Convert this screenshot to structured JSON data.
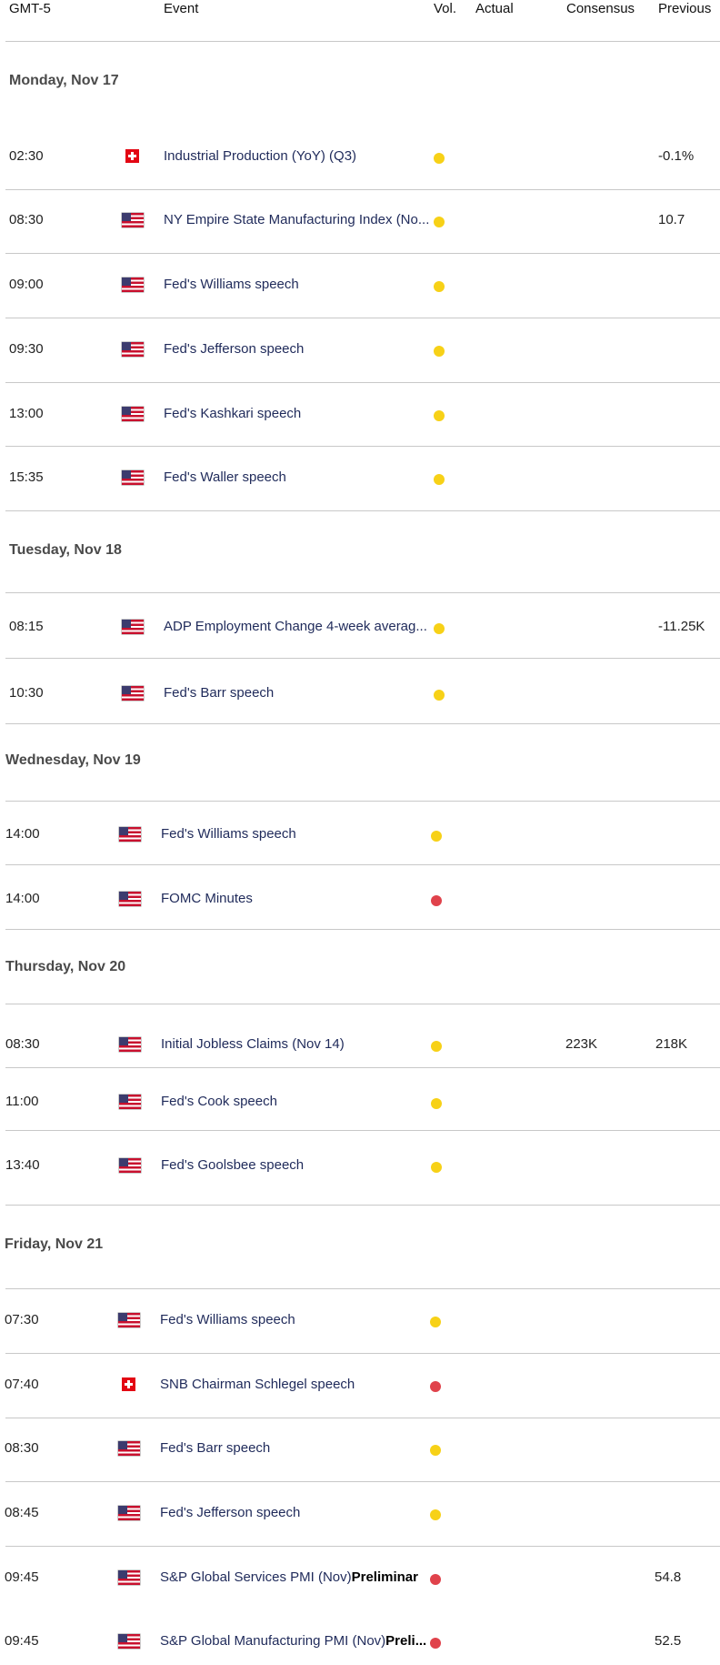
{
  "header": {
    "tz": "GMT-5",
    "event": "Event",
    "vol": "Vol.",
    "actual": "Actual",
    "consensus": "Consensus",
    "previous": "Previous"
  },
  "colors": {
    "medium": "#f7d117",
    "high": "#e0424b"
  },
  "days": [
    {
      "label": "Monday, Nov 17",
      "rows": [
        {
          "time": "02:30",
          "country": "CH",
          "event": "Industrial Production (YoY) (Q3)",
          "event_bold": "",
          "vol": "medium",
          "consensus": "",
          "previous": "-0.1%"
        },
        {
          "time": "08:30",
          "country": "US",
          "event": "NY Empire State Manufacturing Index (No...",
          "event_bold": "",
          "vol": "medium",
          "consensus": "",
          "previous": "10.7"
        },
        {
          "time": "09:00",
          "country": "US",
          "event": "Fed's Williams speech",
          "event_bold": "",
          "vol": "medium",
          "consensus": "",
          "previous": ""
        },
        {
          "time": "09:30",
          "country": "US",
          "event": "Fed's Jefferson speech",
          "event_bold": "",
          "vol": "medium",
          "consensus": "",
          "previous": ""
        },
        {
          "time": "13:00",
          "country": "US",
          "event": "Fed's Kashkari speech",
          "event_bold": "",
          "vol": "medium",
          "consensus": "",
          "previous": ""
        },
        {
          "time": "15:35",
          "country": "US",
          "event": "Fed's Waller speech",
          "event_bold": "",
          "vol": "medium",
          "consensus": "",
          "previous": ""
        }
      ]
    },
    {
      "label": "Tuesday, Nov 18",
      "rows": [
        {
          "time": "08:15",
          "country": "US",
          "event": "ADP Employment Change 4-week averag...",
          "event_bold": "",
          "vol": "medium",
          "consensus": "",
          "previous": "-11.25K"
        },
        {
          "time": "10:30",
          "country": "US",
          "event": "Fed's Barr speech",
          "event_bold": "",
          "vol": "medium",
          "consensus": "",
          "previous": ""
        }
      ]
    },
    {
      "label": "Wednesday, Nov 19",
      "rows": [
        {
          "time": "14:00",
          "country": "US",
          "event": "Fed's Williams speech",
          "event_bold": "",
          "vol": "medium",
          "consensus": "",
          "previous": ""
        },
        {
          "time": "14:00",
          "country": "US",
          "event": "FOMC Minutes",
          "event_bold": "",
          "vol": "high",
          "consensus": "",
          "previous": ""
        }
      ]
    },
    {
      "label": "Thursday, Nov 20",
      "rows": [
        {
          "time": "08:30",
          "country": "US",
          "event": "Initial Jobless Claims (Nov 14)",
          "event_bold": "",
          "vol": "medium",
          "consensus": "223K",
          "previous": "218K"
        },
        {
          "time": "11:00",
          "country": "US",
          "event": "Fed's Cook speech",
          "event_bold": "",
          "vol": "medium",
          "consensus": "",
          "previous": ""
        },
        {
          "time": "13:40",
          "country": "US",
          "event": "Fed's Goolsbee speech",
          "event_bold": "",
          "vol": "medium",
          "consensus": "",
          "previous": ""
        }
      ]
    },
    {
      "label": "Friday, Nov 21",
      "rows": [
        {
          "time": "07:30",
          "country": "US",
          "event": "Fed's Williams speech",
          "event_bold": "",
          "vol": "medium",
          "consensus": "",
          "previous": ""
        },
        {
          "time": "07:40",
          "country": "CH",
          "event": "SNB Chairman Schlegel speech",
          "event_bold": "",
          "vol": "high",
          "consensus": "",
          "previous": ""
        },
        {
          "time": "08:30",
          "country": "US",
          "event": "Fed's Barr speech",
          "event_bold": "",
          "vol": "medium",
          "consensus": "",
          "previous": ""
        },
        {
          "time": "08:45",
          "country": "US",
          "event": "Fed's Jefferson speech",
          "event_bold": "",
          "vol": "medium",
          "consensus": "",
          "previous": ""
        },
        {
          "time": "09:45",
          "country": "US",
          "event": "S&P Global Services PMI (Nov)",
          "event_bold": "Preliminar",
          "vol": "high",
          "consensus": "",
          "previous": "54.8"
        },
        {
          "time": "09:45",
          "country": "US",
          "event": "S&P Global Manufacturing PMI (Nov)",
          "event_bold": "Preli...",
          "vol": "high",
          "consensus": "",
          "previous": "52.5"
        }
      ]
    }
  ]
}
